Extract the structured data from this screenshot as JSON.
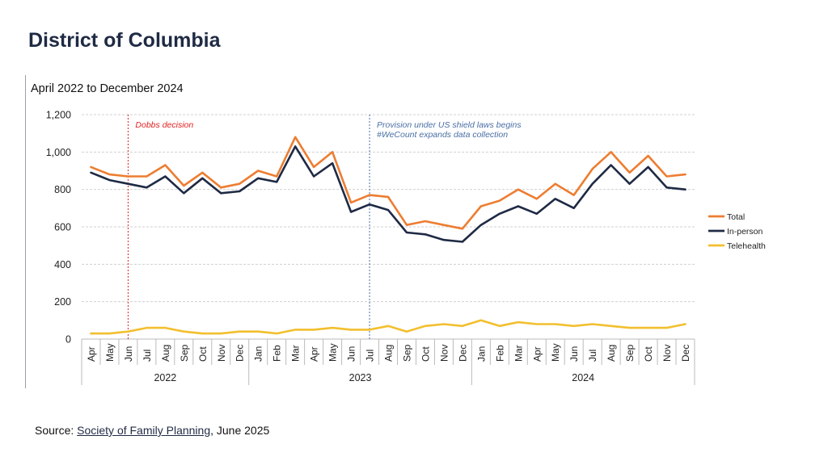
{
  "page": {
    "title": "District of Columbia",
    "source_prefix": "Source: ",
    "source_link": "Society of Family Planning",
    "source_suffix": ", June 2025"
  },
  "colors": {
    "total": "#ed7d31",
    "inperson": "#1f2a44",
    "telehealth": "#f2bf2e",
    "grid": "#d0d0d0"
  },
  "chart_data": {
    "type": "line",
    "title": "April 2022 to December 2024",
    "ylim": [
      0,
      1200
    ],
    "yticks": [
      0,
      200,
      400,
      600,
      800,
      1000,
      1200
    ],
    "ytick_labels": [
      "0",
      "200",
      "400",
      "600",
      "800",
      "1,000",
      "1,200"
    ],
    "categories": [
      "Apr",
      "May",
      "Jun",
      "Jul",
      "Aug",
      "Sep",
      "Oct",
      "Nov",
      "Dec",
      "Jan",
      "Feb",
      "Mar",
      "Apr",
      "May",
      "Jun",
      "Jul",
      "Aug",
      "Sep",
      "Oct",
      "Nov",
      "Dec",
      "Jan",
      "Feb",
      "Mar",
      "Apr",
      "May",
      "Jun",
      "Jul",
      "Aug",
      "Sep",
      "Oct",
      "Nov",
      "Dec"
    ],
    "year_groups": [
      {
        "label": "2022",
        "start": 0,
        "end": 8
      },
      {
        "label": "2023",
        "start": 9,
        "end": 20
      },
      {
        "label": "2024",
        "start": 21,
        "end": 32
      }
    ],
    "series": [
      {
        "name": "Total",
        "key": "total",
        "values": [
          920,
          880,
          870,
          870,
          930,
          820,
          890,
          810,
          830,
          900,
          870,
          1080,
          920,
          1000,
          730,
          770,
          760,
          610,
          630,
          610,
          590,
          710,
          740,
          800,
          750,
          830,
          770,
          910,
          1000,
          890,
          980,
          870,
          880
        ]
      },
      {
        "name": "In-person",
        "key": "inperson",
        "values": [
          890,
          850,
          830,
          810,
          870,
          780,
          860,
          780,
          790,
          860,
          840,
          1030,
          870,
          940,
          680,
          720,
          690,
          570,
          560,
          530,
          520,
          610,
          670,
          710,
          670,
          750,
          700,
          830,
          930,
          830,
          920,
          810,
          800
        ]
      },
      {
        "name": "Telehealth",
        "key": "telehealth",
        "values": [
          30,
          30,
          40,
          60,
          60,
          40,
          30,
          30,
          40,
          40,
          30,
          50,
          50,
          60,
          50,
          50,
          70,
          40,
          70,
          80,
          70,
          100,
          70,
          90,
          80,
          80,
          70,
          80,
          70,
          60,
          60,
          60,
          80
        ]
      }
    ],
    "annotations": [
      {
        "index": 2,
        "lines": [
          "Dobbs decision"
        ],
        "color": "#e02020"
      },
      {
        "index": 15,
        "lines": [
          "Provision under US shield laws begins",
          "#WeCount expands data collection"
        ],
        "color": "#4a6fa5"
      }
    ],
    "legend_position": "right"
  }
}
